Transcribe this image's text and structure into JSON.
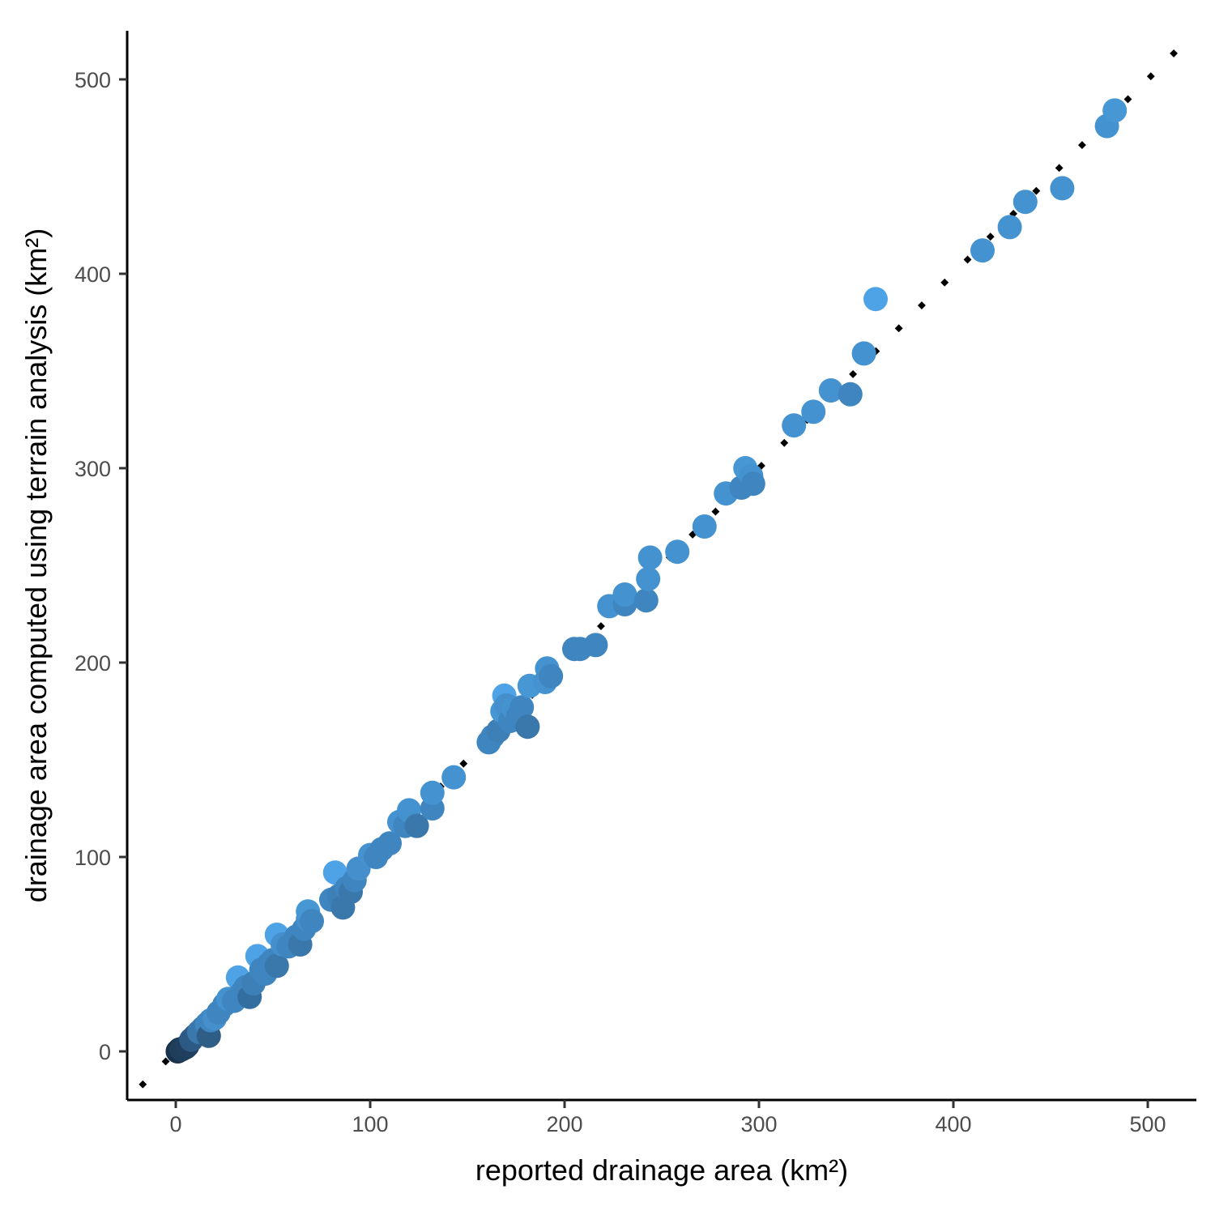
{
  "chart_data": {
    "type": "scatter",
    "xlabel": "reported drainage area (km²)",
    "ylabel": "drainage area computed using terrain analysis (km²)",
    "xlim": [
      -25,
      525
    ],
    "ylim": [
      -25,
      525
    ],
    "x_ticks": [
      0,
      100,
      200,
      300,
      400,
      500
    ],
    "y_ticks": [
      0,
      100,
      200,
      300,
      400,
      500
    ],
    "x_tick_labels": [
      "0",
      "100",
      "200",
      "300",
      "400",
      "500"
    ],
    "y_tick_labels": [
      "0",
      "100",
      "200",
      "300",
      "400",
      "500"
    ],
    "grid": false,
    "legend": "none",
    "reference_line": {
      "type": "1:1",
      "style": "dotted",
      "color": "#000000",
      "from": [
        -18,
        -18
      ],
      "to": [
        517,
        517
      ]
    },
    "colors": {
      "dark": "#1a334d",
      "mid": "#3f85c0",
      "light": "#4ea3e6"
    },
    "points": [
      [
        1,
        0,
        "#1a334d"
      ],
      [
        2,
        1,
        "#1a334d"
      ],
      [
        3,
        1,
        "#1f3e5c"
      ],
      [
        5,
        2,
        "#1f3e5c"
      ],
      [
        6,
        3,
        "#203f5e"
      ],
      [
        8,
        6,
        "#2d5a84"
      ],
      [
        10,
        8,
        "#2d5a84"
      ],
      [
        12,
        10,
        "#3a77aa"
      ],
      [
        14,
        12,
        "#3a77aa"
      ],
      [
        16,
        14,
        "#3f85c0"
      ],
      [
        17,
        8,
        "#2e5d86"
      ],
      [
        18,
        16,
        "#3f85c0"
      ],
      [
        20,
        17,
        "#4590cc"
      ],
      [
        22,
        20,
        "#3f85c0"
      ],
      [
        25,
        24,
        "#3f85c0"
      ],
      [
        27,
        27,
        "#4492cf"
      ],
      [
        30,
        26,
        "#3f85c0"
      ],
      [
        32,
        38,
        "#4ea3e6"
      ],
      [
        34,
        30,
        "#3f85c0"
      ],
      [
        36,
        33,
        "#3f85c0"
      ],
      [
        38,
        28,
        "#346ea0"
      ],
      [
        40,
        35,
        "#3d80b8"
      ],
      [
        42,
        49,
        "#4ea3e6"
      ],
      [
        44,
        42,
        "#3f85c0"
      ],
      [
        46,
        40,
        "#3f85c0"
      ],
      [
        48,
        45,
        "#3f85c0"
      ],
      [
        50,
        47,
        "#3f85c0"
      ],
      [
        52,
        44,
        "#3a77aa"
      ],
      [
        52,
        60,
        "#4ea3e6"
      ],
      [
        55,
        55,
        "#4590cc"
      ],
      [
        58,
        54,
        "#3f85c0"
      ],
      [
        62,
        59,
        "#3f85c0"
      ],
      [
        64,
        55,
        "#3a77aa"
      ],
      [
        66,
        63,
        "#3f85c0"
      ],
      [
        68,
        68,
        "#4590cc"
      ],
      [
        68,
        72,
        "#4697d4"
      ],
      [
        70,
        67,
        "#3f85c0"
      ],
      [
        80,
        78,
        "#3f85c0"
      ],
      [
        82,
        92,
        "#4ea3e6"
      ],
      [
        84,
        80,
        "#3d80b8"
      ],
      [
        86,
        74,
        "#3a77aa"
      ],
      [
        88,
        84,
        "#3f85c0"
      ],
      [
        90,
        82,
        "#3a77aa"
      ],
      [
        92,
        88,
        "#3f85c0"
      ],
      [
        94,
        94,
        "#4590cc"
      ],
      [
        100,
        101,
        "#4492cf"
      ],
      [
        103,
        100,
        "#3f85c0"
      ],
      [
        106,
        104,
        "#3f85c0"
      ],
      [
        110,
        107,
        "#3f85c0"
      ],
      [
        115,
        118,
        "#4492cf"
      ],
      [
        118,
        116,
        "#3f85c0"
      ],
      [
        120,
        124,
        "#4492cf"
      ],
      [
        124,
        116,
        "#3a77aa"
      ],
      [
        132,
        125,
        "#3f85c0"
      ],
      [
        132,
        133,
        "#4492cf"
      ],
      [
        143,
        141,
        "#4492cf"
      ],
      [
        161,
        159,
        "#3f85c0"
      ],
      [
        163,
        162,
        "#3f85c0"
      ],
      [
        166,
        165,
        "#3d80b8"
      ],
      [
        168,
        175,
        "#4697d4"
      ],
      [
        169,
        183,
        "#4ea3e6"
      ],
      [
        170,
        178,
        "#4590cc"
      ],
      [
        172,
        170,
        "#3f85c0"
      ],
      [
        174,
        176,
        "#4492cf"
      ],
      [
        176,
        172,
        "#3f85c0"
      ],
      [
        178,
        177,
        "#3f85c0"
      ],
      [
        181,
        167,
        "#3a77aa"
      ],
      [
        182,
        188,
        "#4697d4"
      ],
      [
        190,
        190,
        "#4492cf"
      ],
      [
        191,
        197,
        "#4492cf"
      ],
      [
        193,
        193,
        "#3f85c0"
      ],
      [
        205,
        207,
        "#3f85c0"
      ],
      [
        208,
        207,
        "#3f85c0"
      ],
      [
        216,
        209,
        "#3f85c0"
      ],
      [
        223,
        229,
        "#4492cf"
      ],
      [
        231,
        230,
        "#3f85c0"
      ],
      [
        231,
        235,
        "#4492cf"
      ],
      [
        242,
        232,
        "#3f85c0"
      ],
      [
        243,
        243,
        "#4492cf"
      ],
      [
        244,
        254,
        "#4492cf"
      ],
      [
        258,
        257,
        "#4492cf"
      ],
      [
        272,
        270,
        "#4492cf"
      ],
      [
        283,
        287,
        "#4492cf"
      ],
      [
        291,
        290,
        "#3f85c0"
      ],
      [
        293,
        300,
        "#4697d4"
      ],
      [
        296,
        296,
        "#4492cf"
      ],
      [
        297,
        292,
        "#3f85c0"
      ],
      [
        318,
        322,
        "#4492cf"
      ],
      [
        328,
        329,
        "#4492cf"
      ],
      [
        337,
        340,
        "#4492cf"
      ],
      [
        347,
        338,
        "#3f85c0"
      ],
      [
        354,
        359,
        "#4492cf"
      ],
      [
        360,
        387,
        "#4ea3e6"
      ],
      [
        415,
        412,
        "#4492cf"
      ],
      [
        429,
        424,
        "#4492cf"
      ],
      [
        437,
        437,
        "#4492cf"
      ],
      [
        456,
        444,
        "#4492cf"
      ],
      [
        479,
        476,
        "#4492cf"
      ],
      [
        483,
        484,
        "#4697d4"
      ]
    ]
  }
}
